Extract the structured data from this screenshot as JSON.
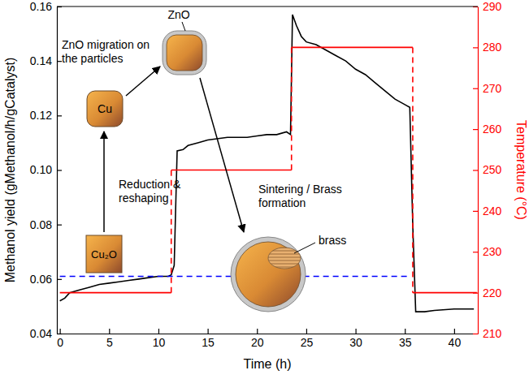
{
  "chart_data": {
    "type": "line",
    "x_label": "Time (h)",
    "y_label": "Methanol yield (gMethanol/h/gCatalyst)",
    "y2_label": "Temperature (°C)",
    "xlim": [
      -0.3,
      42.4
    ],
    "xticks": [
      0,
      5,
      10,
      15,
      20,
      25,
      30,
      35,
      40
    ],
    "ylim": [
      0.04,
      0.16
    ],
    "yticks": [
      0.04,
      0.06,
      0.08,
      {
        "value": 0.1,
        "label": "0.10"
      },
      0.12,
      0.14,
      0.16
    ],
    "y2lim": [
      210,
      290
    ],
    "y2ticks": [
      210,
      220,
      230,
      240,
      250,
      260,
      270,
      280,
      290
    ],
    "grid": false,
    "series": [
      {
        "color": "#000000",
        "line_style": "solid",
        "x": [
          0,
          0.5,
          1,
          2,
          3,
          4,
          5,
          6,
          7,
          8,
          9,
          10,
          11,
          11.3,
          11.6,
          11.9,
          12.5,
          13,
          14,
          15,
          17,
          19,
          20,
          21,
          22,
          23,
          23.4,
          23.6,
          24,
          24.5,
          25,
          26,
          27,
          28,
          29,
          30,
          31,
          32,
          33,
          34,
          35,
          35.5,
          35.8,
          36.1,
          37,
          38,
          40,
          42
        ],
        "values": [
          0.052,
          0.053,
          0.055,
          0.056,
          0.057,
          0.058,
          0.0585,
          0.059,
          0.0595,
          0.06,
          0.0605,
          0.061,
          0.061,
          0.0615,
          0.065,
          0.107,
          0.1075,
          0.109,
          0.11,
          0.111,
          0.112,
          0.112,
          0.1125,
          0.113,
          0.113,
          0.114,
          0.113,
          0.157,
          0.153,
          0.149,
          0.147,
          0.146,
          0.144,
          0.142,
          0.14,
          0.137,
          0.135,
          0.132,
          0.129,
          0.126,
          0.124,
          0.123,
          0.08,
          0.048,
          0.048,
          0.0485,
          0.049,
          0.049
        ]
      },
      {
        "color": "#ff0000",
        "axis": "y2",
        "type": "step",
        "line_style": "solid",
        "x": [
          0,
          11.3,
          23.5,
          35.8,
          42.3
        ],
        "values": [
          220,
          250,
          280,
          220,
          220
        ]
      },
      {
        "color": "#0000ff",
        "line_style": "dashed",
        "x": [
          0,
          35.5
        ],
        "values": [
          0.061,
          0.061
        ]
      }
    ],
    "annotations": [
      "Cu₂O",
      "Cu",
      "ZnO",
      "brass",
      "Reduction & reshaping",
      "ZnO migration on the particles",
      "Sintering / Brass formation"
    ]
  }
}
